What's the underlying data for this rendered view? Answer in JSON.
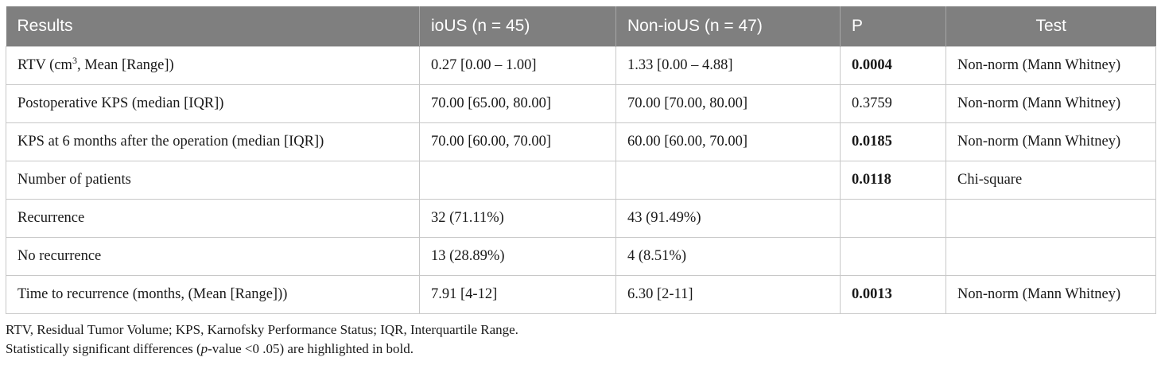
{
  "table": {
    "headers": [
      "Results",
      "ioUS (n = 45)",
      "Non-ioUS (n = 47)",
      "P",
      "Test"
    ],
    "rows": [
      {
        "label_pre": "RTV (cm",
        "label_sup": "3",
        "label_post": ", Mean [Range])",
        "iousValue": "0.27 [0.00 – 1.00]",
        "nonIousValue": "1.33 [0.00 – 4.88]",
        "p": "0.0004",
        "pBold": true,
        "test": "Non-norm (Mann Whitney)"
      },
      {
        "label": "Postoperative KPS (median [IQR])",
        "iousValue": "70.00 [65.00, 80.00]",
        "nonIousValue": "70.00 [70.00, 80.00]",
        "p": "0.3759",
        "pBold": false,
        "test": "Non-norm (Mann Whitney)"
      },
      {
        "label": "KPS at 6 months after the operation (median [IQR])",
        "iousValue": "70.00 [60.00, 70.00]",
        "nonIousValue": "60.00 [60.00, 70.00]",
        "p": "0.0185",
        "pBold": true,
        "test": "Non-norm (Mann Whitney)"
      },
      {
        "label": "Number of patients",
        "iousValue": "",
        "nonIousValue": "",
        "p": "0.0118",
        "pBold": true,
        "test": "Chi-square"
      },
      {
        "label": "Recurrence",
        "iousValue": "32 (71.11%)",
        "nonIousValue": "43 (91.49%)",
        "p": "",
        "pBold": false,
        "test": ""
      },
      {
        "label": "No recurrence",
        "iousValue": "13 (28.89%)",
        "nonIousValue": "4 (8.51%)",
        "p": "",
        "pBold": false,
        "test": ""
      },
      {
        "label": "Time to recurrence (months, (Mean [Range]))",
        "iousValue": "7.91 [4-12]",
        "nonIousValue": "6.30 [2-11]",
        "p": "0.0013",
        "pBold": true,
        "test": "Non-norm (Mann Whitney)"
      }
    ]
  },
  "footnotes": {
    "abbreviations": "RTV, Residual Tumor Volume; KPS, Karnofsky Performance Status; IQR, Interquartile Range.",
    "significance_pre": "Statistically significant differences (",
    "significance_italic": "p",
    "significance_post": "-value <0 .05) are highlighted in bold."
  },
  "colors": {
    "header_bg": "#7f7f7f",
    "header_text": "#ffffff",
    "grid": "#c8c8c8"
  }
}
